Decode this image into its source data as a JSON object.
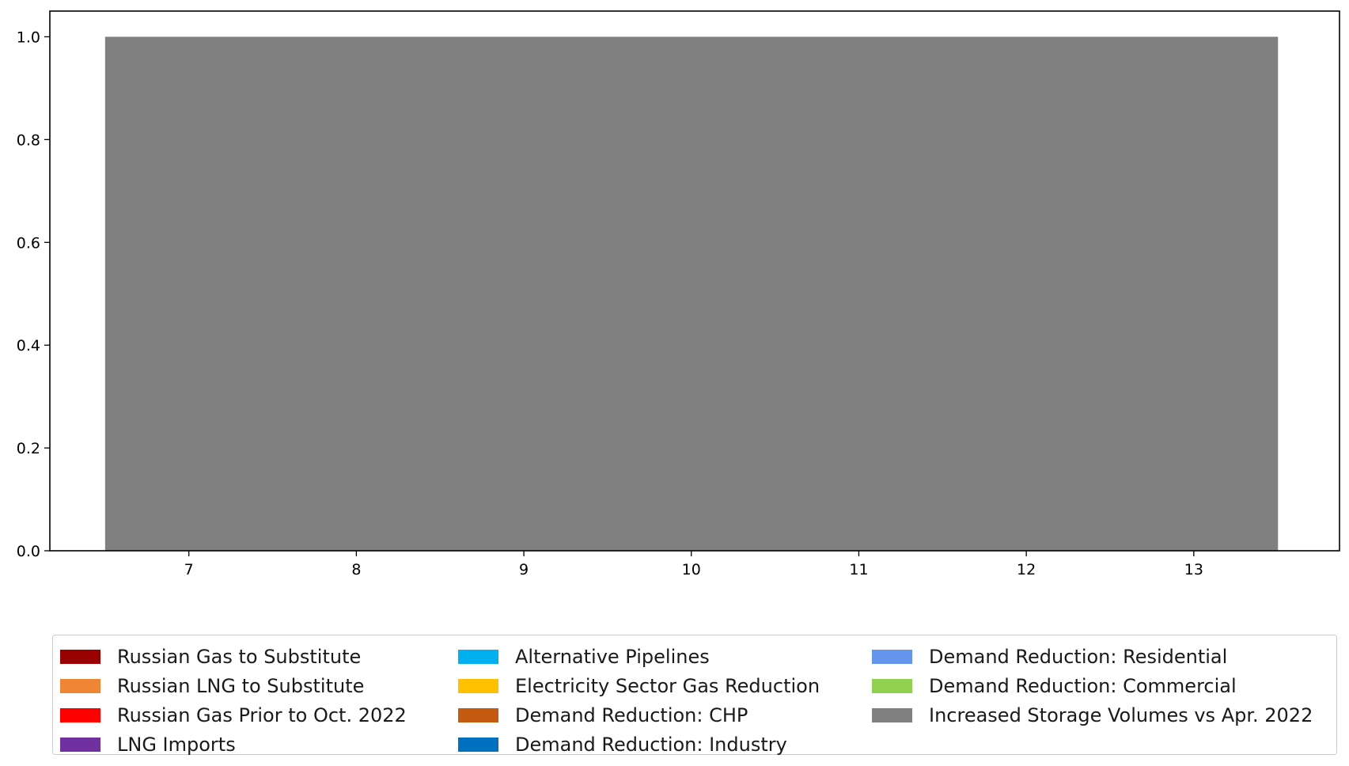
{
  "chart_data": {
    "type": "bar",
    "stacked": true,
    "x": [
      7,
      8,
      9,
      10,
      11,
      12,
      13
    ],
    "xlim": [
      6.17,
      13.87
    ],
    "ylim": [
      0,
      1.05
    ],
    "xticks": [
      "7",
      "8",
      "9",
      "10",
      "11",
      "12",
      "13"
    ],
    "yticks": [
      "0.0",
      "0.2",
      "0.4",
      "0.6",
      "0.8",
      "1.0"
    ],
    "bar_width": 1.0,
    "grid": false,
    "legend_placement": "below",
    "series": [
      {
        "name": "Russian Gas to Substitute",
        "color": "#990000",
        "values": [
          0,
          0,
          0,
          0,
          0,
          0,
          0
        ]
      },
      {
        "name": "Russian LNG to Substitute",
        "color": "#F08535",
        "values": [
          0,
          0,
          0,
          0,
          0,
          0,
          0
        ]
      },
      {
        "name": "Russian Gas Prior to Oct. 2022",
        "color": "#FF0000",
        "values": [
          0,
          0,
          0,
          0,
          0,
          0,
          0
        ]
      },
      {
        "name": "LNG Imports",
        "color": "#7030A0",
        "values": [
          0,
          0,
          0,
          0,
          0,
          0,
          0
        ]
      },
      {
        "name": "Alternative Pipelines",
        "color": "#00B0F0",
        "values": [
          0,
          0,
          0,
          0,
          0,
          0,
          0
        ]
      },
      {
        "name": "Electricity Sector Gas Reduction",
        "color": "#FFC000",
        "values": [
          0,
          0,
          0,
          0,
          0,
          0,
          0
        ]
      },
      {
        "name": "Demand Reduction: CHP",
        "color": "#C55A11",
        "values": [
          0,
          0,
          0,
          0,
          0,
          0,
          0
        ]
      },
      {
        "name": "Demand Reduction: Industry",
        "color": "#0070C0",
        "values": [
          0,
          0,
          0,
          0,
          0,
          0,
          0
        ]
      },
      {
        "name": "Demand Reduction: Residential",
        "color": "#6495ED",
        "values": [
          0,
          0,
          0,
          0,
          0,
          0,
          0
        ]
      },
      {
        "name": "Demand Reduction: Commercial",
        "color": "#92D050",
        "values": [
          0,
          0,
          0,
          0,
          0,
          0,
          0
        ]
      },
      {
        "name": "Increased Storage Volumes vs Apr. 2022",
        "color": "#808080",
        "values": [
          1,
          1,
          1,
          1,
          1,
          1,
          1
        ]
      }
    ]
  }
}
